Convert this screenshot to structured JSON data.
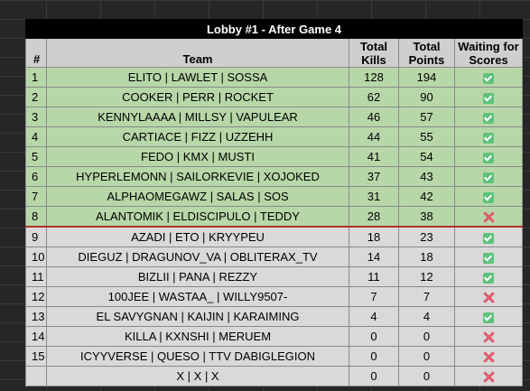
{
  "table": {
    "title": "Lobby #1 - After Game 4",
    "headers": {
      "num": "#",
      "team": "Team",
      "kills": "Total Kills",
      "points": "Total Points",
      "waiting": "Waiting for Scores"
    },
    "rows": [
      {
        "num": "1",
        "team": "ELITO | LAWLET | SOSSA",
        "kills": "128",
        "points": "194",
        "status": "check-icon"
      },
      {
        "num": "2",
        "team": "COOKER | PERR | ROCKET",
        "kills": "62",
        "points": "90",
        "status": "check-icon"
      },
      {
        "num": "3",
        "team": "KENNYLAAAA | MILLSY | VAPULEAR",
        "kills": "46",
        "points": "57",
        "status": "check-icon"
      },
      {
        "num": "4",
        "team": "CARTIACE | FIZZ | UZZEHH",
        "kills": "44",
        "points": "55",
        "status": "check-icon"
      },
      {
        "num": "5",
        "team": "FEDO | KMX | MUSTI",
        "kills": "41",
        "points": "54",
        "status": "check-icon"
      },
      {
        "num": "6",
        "team": "HYPERLEMONN | SAILORKEVIE | XOJOKED",
        "kills": "37",
        "points": "43",
        "status": "check-icon"
      },
      {
        "num": "7",
        "team": "ALPHAOMEGAWZ | SALAS | SOS",
        "kills": "31",
        "points": "42",
        "status": "check-icon"
      },
      {
        "num": "8",
        "team": "ALANTOMIK | ELDISCIPULO | TEDDY",
        "kills": "28",
        "points": "38",
        "status": "cross-icon"
      },
      {
        "num": "9",
        "team": "AZADI | ETO | KRYYPEU",
        "kills": "18",
        "points": "23",
        "status": "check-icon"
      },
      {
        "num": "10",
        "team": "DIEGUZ | DRAGUNOV_VA | OBLITERAX_TV",
        "kills": "14",
        "points": "18",
        "status": "check-icon"
      },
      {
        "num": "11",
        "team": "BIZLII | PANA | REZZY",
        "kills": "11",
        "points": "12",
        "status": "check-icon"
      },
      {
        "num": "12",
        "team": "100JEE | WASTAA_ | WILLY9507-",
        "kills": "7",
        "points": "7",
        "status": "cross-icon"
      },
      {
        "num": "13",
        "team": "EL SAVYGNAN | KAIJIN | KARAIMING",
        "kills": "4",
        "points": "4",
        "status": "check-icon"
      },
      {
        "num": "14",
        "team": "KILLA | KXNSHI | MERUEM",
        "kills": "0",
        "points": "0",
        "status": "cross-icon"
      },
      {
        "num": "15",
        "team": "ICYYVERSE | QUESO | TTV DABIGLEGION",
        "kills": "0",
        "points": "0",
        "status": "cross-icon"
      },
      {
        "num": "",
        "team": "X | X | X",
        "kills": "0",
        "points": "0",
        "status": "cross-icon"
      }
    ],
    "qualified_count": 8,
    "colors": {
      "qualified": "#b7d7a8",
      "not_qualified": "#d9d9d9",
      "cutoff_line": "#b0312c",
      "check": "#5ec27a",
      "cross": "#e35a6e"
    }
  }
}
